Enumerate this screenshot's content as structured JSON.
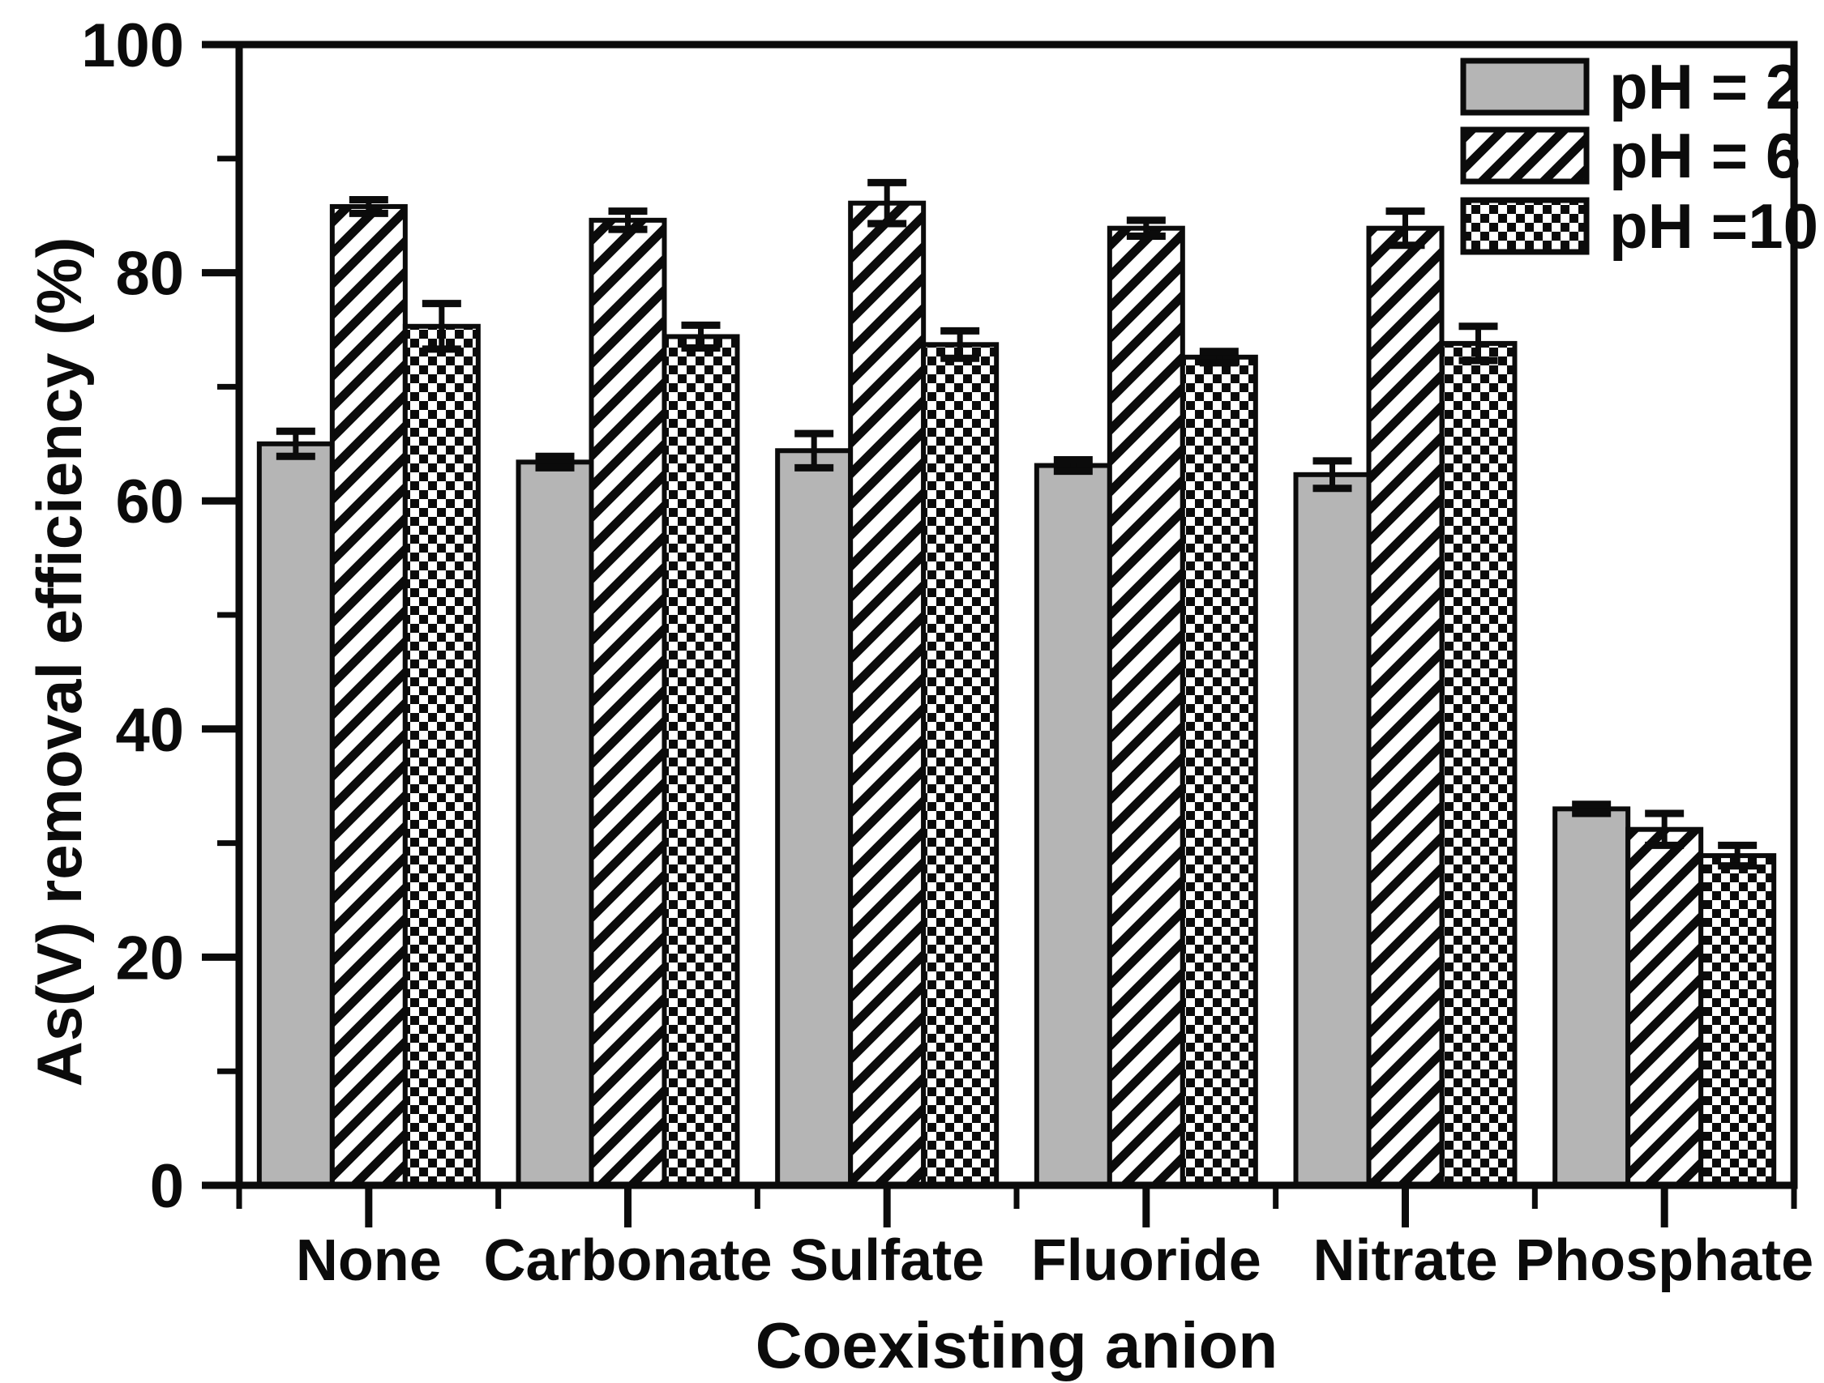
{
  "chart_data": {
    "type": "bar",
    "title": "",
    "xlabel": "Coexisting anion",
    "ylabel": "As(V) removal efficiency (%)",
    "categories": [
      "None",
      "Carbonate",
      "Sulfate",
      "Fluoride",
      "Nitrate",
      "Phosphate"
    ],
    "series": [
      {
        "name": "pH = 2",
        "pattern": "solid-gray",
        "values": [
          65.0,
          63.4,
          64.4,
          63.1,
          62.3,
          33.0
        ],
        "errors": [
          1.1,
          0.5,
          1.5,
          0.5,
          1.2,
          0.4
        ]
      },
      {
        "name": "pH = 6",
        "pattern": "diagonal-hatch",
        "values": [
          85.8,
          84.6,
          86.1,
          83.9,
          83.9,
          31.2
        ],
        "errors": [
          0.6,
          0.8,
          1.8,
          0.7,
          1.5,
          1.4
        ]
      },
      {
        "name": "pH =10",
        "pattern": "checkerboard",
        "values": [
          75.3,
          74.4,
          73.7,
          72.6,
          73.8,
          28.9
        ],
        "errors": [
          2.0,
          1.0,
          1.2,
          0.5,
          1.5,
          0.9
        ]
      }
    ],
    "ylim": [
      0,
      100
    ],
    "ytick_major": [
      0,
      20,
      40,
      60,
      80,
      100
    ],
    "ytick_minor": [
      10,
      30,
      50,
      70,
      90
    ],
    "grid": false,
    "legend_position": "top-right",
    "error_bars": true
  },
  "colors": {
    "ink": "#0b0b0b",
    "bar_gray": "#b5b5b5",
    "bar_pattern_bg": "#ffffff",
    "background": "#ffffff"
  }
}
